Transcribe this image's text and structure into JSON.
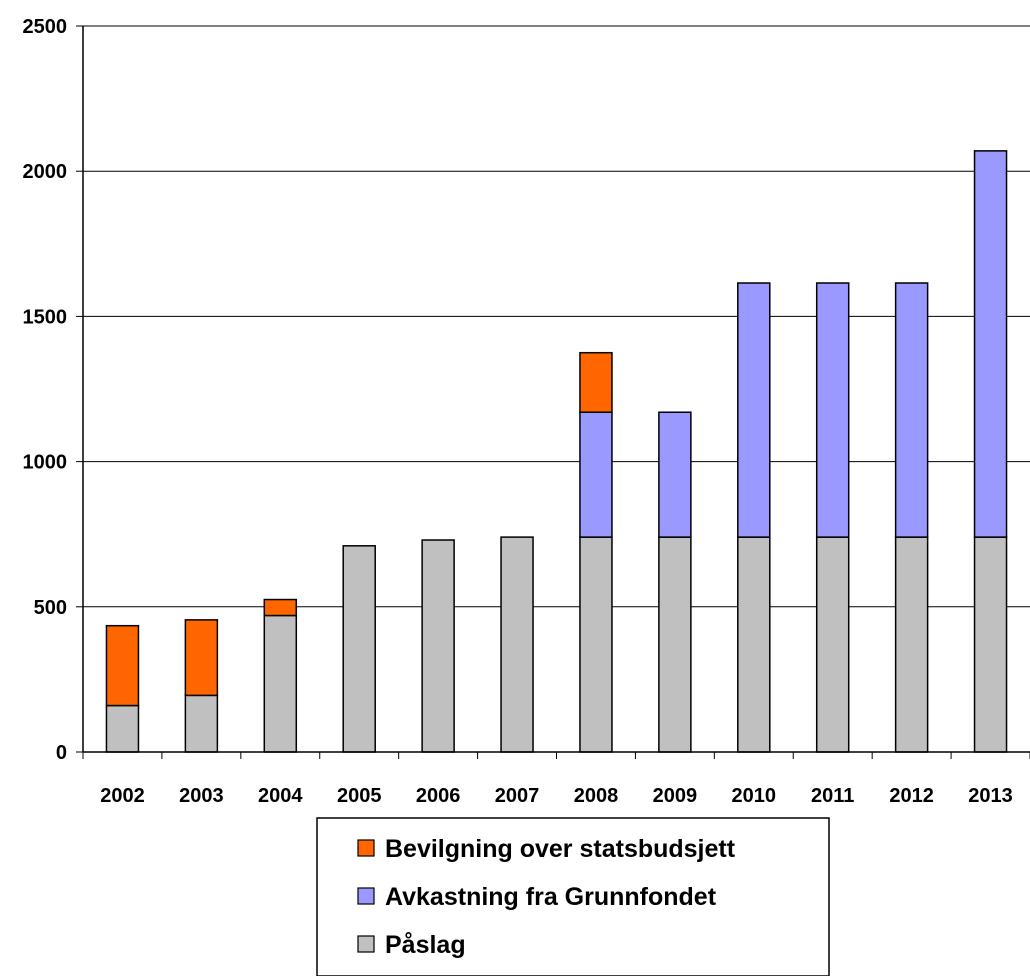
{
  "chart_data": {
    "type": "bar",
    "stacked": true,
    "title": "",
    "xlabel": "",
    "ylabel": "",
    "categories": [
      "2002",
      "2003",
      "2004",
      "2005",
      "2006",
      "2007",
      "2008",
      "2009",
      "2010",
      "2011",
      "2012",
      "2013"
    ],
    "series": [
      {
        "name": "Påslag",
        "color": "#c0c0c0",
        "values": [
          160,
          195,
          470,
          710,
          730,
          740,
          740,
          740,
          740,
          740,
          740,
          740
        ]
      },
      {
        "name": "Avkastning fra Grunnfondet",
        "color": "#9999ff",
        "values": [
          0,
          0,
          0,
          0,
          0,
          0,
          430,
          430,
          875,
          875,
          875,
          1330
        ]
      },
      {
        "name": "Bevilgning over statsbudsjett",
        "color": "#ff6600",
        "values": [
          275,
          260,
          55,
          0,
          0,
          0,
          205,
          0,
          0,
          0,
          0,
          0
        ]
      }
    ],
    "ylim": [
      0,
      2500
    ],
    "yticks": [
      0,
      500,
      1000,
      1500,
      2000,
      2500
    ],
    "grid": true,
    "legend": {
      "placement": "bottom",
      "order": [
        "Bevilgning over statsbudsjett",
        "Avkastning fra Grunnfondet",
        "Påslag"
      ]
    }
  }
}
